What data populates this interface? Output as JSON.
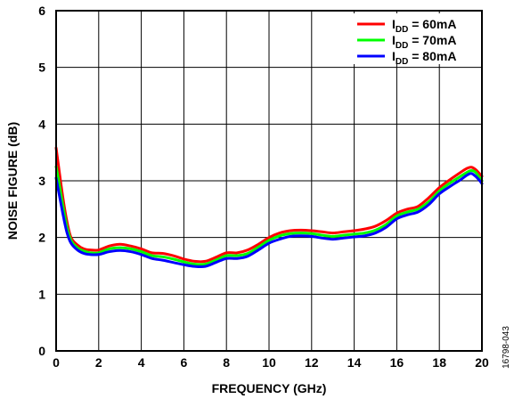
{
  "chart_data": {
    "type": "line",
    "title": "",
    "xlabel": "FREQUENCY (GHz)",
    "ylabel": "NOISE FIGURE (dB)",
    "xlim": [
      0,
      20
    ],
    "ylim": [
      0,
      6
    ],
    "x_ticks": [
      "0",
      "2",
      "4",
      "6",
      "8",
      "10",
      "12",
      "14",
      "16",
      "18",
      "20"
    ],
    "y_ticks": [
      "0",
      "1",
      "2",
      "3",
      "4",
      "5",
      "6"
    ],
    "grid": true,
    "legend_position": "top-right",
    "figure_id": "16798-043",
    "series": [
      {
        "name": "IDD = 60mA",
        "label_main": "I",
        "label_sub": "DD",
        "label_rest": " = 60mA",
        "color": "#ff0000",
        "x": [
          0,
          0.1,
          0.3,
          0.5,
          0.7,
          1.0,
          1.3,
          1.6,
          2.0,
          2.5,
          3.0,
          3.5,
          4.0,
          4.5,
          5.0,
          5.5,
          6.0,
          6.5,
          7.0,
          7.5,
          8.0,
          8.5,
          9.0,
          9.5,
          10.0,
          10.5,
          11.0,
          11.5,
          12.0,
          12.5,
          13.0,
          13.5,
          14.0,
          14.5,
          15.0,
          15.5,
          16.0,
          16.5,
          17.0,
          17.5,
          18.0,
          18.5,
          19.0,
          19.3,
          19.5,
          19.7,
          19.9,
          20.0
        ],
        "y": [
          3.58,
          3.3,
          2.75,
          2.3,
          2.0,
          1.87,
          1.8,
          1.78,
          1.78,
          1.85,
          1.88,
          1.85,
          1.8,
          1.73,
          1.72,
          1.68,
          1.62,
          1.58,
          1.58,
          1.65,
          1.73,
          1.73,
          1.78,
          1.88,
          2.0,
          2.08,
          2.12,
          2.13,
          2.12,
          2.1,
          2.08,
          2.1,
          2.12,
          2.15,
          2.2,
          2.3,
          2.43,
          2.5,
          2.55,
          2.7,
          2.88,
          3.02,
          3.15,
          3.22,
          3.24,
          3.2,
          3.12,
          3.08
        ]
      },
      {
        "name": "IDD = 70mA",
        "label_main": "I",
        "label_sub": "DD",
        "label_rest": " = 70mA",
        "color": "#00ff00",
        "x": [
          0,
          0.1,
          0.3,
          0.5,
          0.7,
          1.0,
          1.3,
          1.6,
          2.0,
          2.5,
          3.0,
          3.5,
          4.0,
          4.5,
          5.0,
          5.5,
          6.0,
          6.5,
          7.0,
          7.5,
          8.0,
          8.5,
          9.0,
          9.5,
          10.0,
          10.5,
          11.0,
          11.5,
          12.0,
          12.5,
          13.0,
          13.5,
          14.0,
          14.5,
          15.0,
          15.5,
          16.0,
          16.5,
          17.0,
          17.5,
          18.0,
          18.5,
          19.0,
          19.3,
          19.5,
          19.7,
          19.9,
          20.0
        ],
        "y": [
          3.25,
          3.05,
          2.6,
          2.2,
          1.95,
          1.82,
          1.76,
          1.73,
          1.73,
          1.8,
          1.82,
          1.8,
          1.75,
          1.68,
          1.66,
          1.62,
          1.57,
          1.53,
          1.53,
          1.6,
          1.68,
          1.68,
          1.72,
          1.83,
          1.95,
          2.03,
          2.07,
          2.08,
          2.07,
          2.04,
          2.02,
          2.04,
          2.06,
          2.08,
          2.13,
          2.23,
          2.38,
          2.45,
          2.5,
          2.63,
          2.82,
          2.96,
          3.08,
          3.15,
          3.18,
          3.15,
          3.05,
          3.0
        ]
      },
      {
        "name": "IDD = 80mA",
        "label_main": "I",
        "label_sub": "DD",
        "label_rest": " = 80mA",
        "color": "#0000ff",
        "x": [
          0,
          0.1,
          0.3,
          0.5,
          0.7,
          1.0,
          1.3,
          1.6,
          2.0,
          2.5,
          3.0,
          3.5,
          4.0,
          4.5,
          5.0,
          5.5,
          6.0,
          6.5,
          7.0,
          7.5,
          8.0,
          8.5,
          9.0,
          9.5,
          10.0,
          10.5,
          11.0,
          11.5,
          12.0,
          12.5,
          13.0,
          13.5,
          14.0,
          14.5,
          15.0,
          15.5,
          16.0,
          16.5,
          17.0,
          17.5,
          18.0,
          18.5,
          19.0,
          19.3,
          19.5,
          19.7,
          19.9,
          20.0
        ],
        "y": [
          3.05,
          2.85,
          2.45,
          2.1,
          1.9,
          1.78,
          1.72,
          1.7,
          1.7,
          1.75,
          1.77,
          1.75,
          1.7,
          1.63,
          1.6,
          1.56,
          1.52,
          1.49,
          1.49,
          1.56,
          1.63,
          1.63,
          1.67,
          1.78,
          1.9,
          1.97,
          2.02,
          2.03,
          2.02,
          1.99,
          1.97,
          1.99,
          2.01,
          2.03,
          2.08,
          2.18,
          2.33,
          2.4,
          2.45,
          2.58,
          2.77,
          2.9,
          3.02,
          3.1,
          3.13,
          3.08,
          3.0,
          2.95
        ]
      }
    ]
  }
}
